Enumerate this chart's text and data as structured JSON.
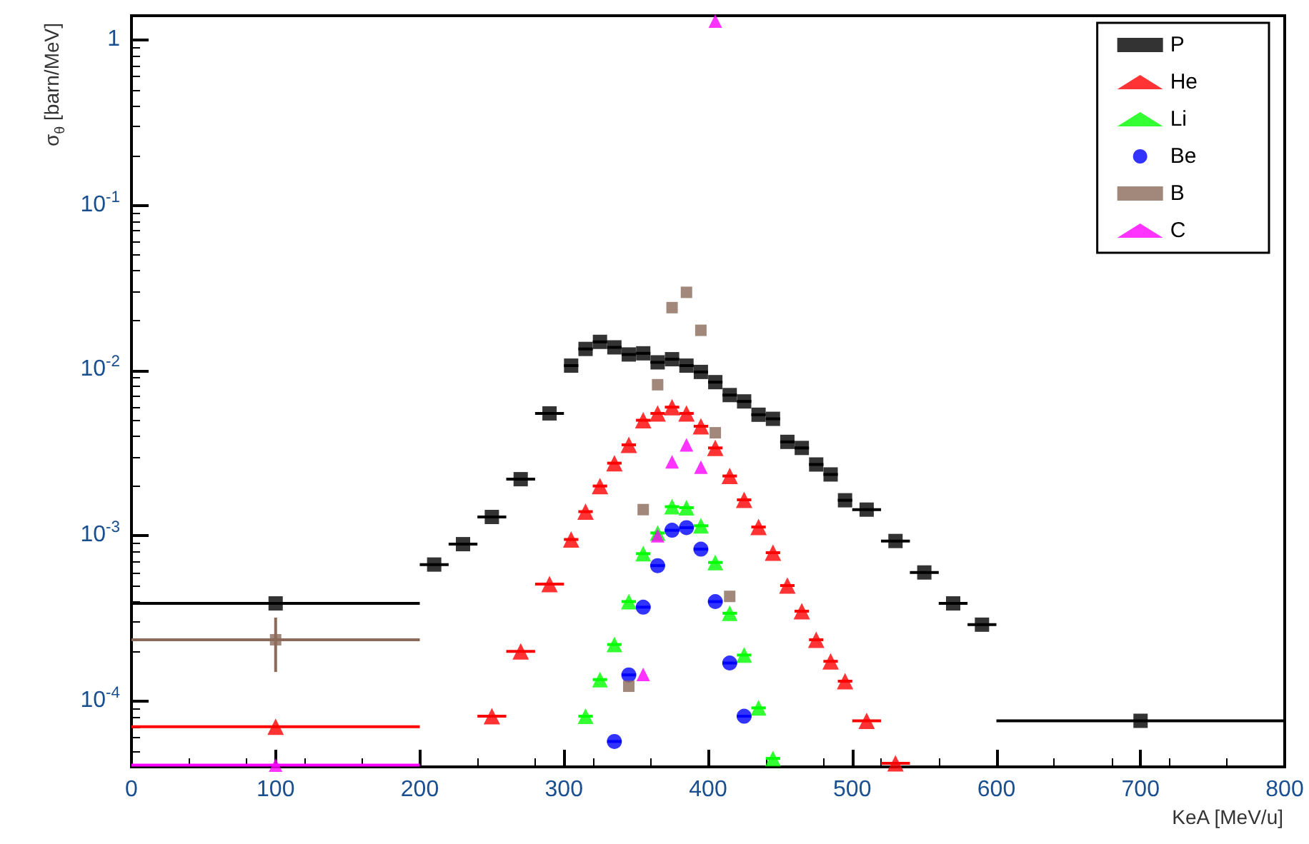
{
  "chart_data": {
    "type": "scatter",
    "xlabel": "KeA [MeV/u]",
    "ylabel": "σ$_{θ}$ [barn/MeV]",
    "log": "y",
    "legend": "top right",
    "xlim": [
      0,
      800
    ],
    "xticks": [
      0,
      100,
      200,
      300,
      400,
      500,
      600,
      700,
      800
    ],
    "ylim": [
      4e-05,
      1.4
    ],
    "yticks": [
      {
        "value": 0.0001,
        "label": "10$^{-4}$"
      },
      {
        "value": 0.001,
        "label": "10$^{-3}$"
      },
      {
        "value": 0.01,
        "label": "10$^{-2}$"
      },
      {
        "value": 0.1,
        "label": "10$^{-1}$"
      },
      1
    ],
    "series": [
      {
        "name": "P",
        "color": "#000000",
        "marker": "square",
        "x": [
          100,
          210,
          230,
          250,
          270,
          290,
          305,
          315,
          325,
          335,
          345,
          355,
          365,
          375,
          385,
          395,
          405,
          415,
          425,
          435,
          445,
          455,
          465,
          475,
          485,
          495,
          510,
          530,
          550,
          570,
          590,
          700
        ],
        "values": [
          0.00039,
          0.00067,
          0.00089,
          0.0013,
          0.0022,
          0.0055,
          0.0107,
          0.0135,
          0.0149,
          0.0138,
          0.0125,
          0.0127,
          0.0112,
          0.0117,
          0.0107,
          0.0098,
          0.0085,
          0.0071,
          0.0065,
          0.0054,
          0.0051,
          0.0037,
          0.0034,
          0.0027,
          0.00235,
          0.00164,
          0.00144,
          0.00093,
          0.0006,
          0.00039,
          0.00029,
          7.6e-05
        ],
        "xerrors": [
          100,
          10,
          10,
          10,
          10,
          10,
          5,
          5,
          5,
          5,
          5,
          5,
          5,
          5,
          5,
          5,
          5,
          5,
          5,
          5,
          5,
          5,
          5,
          5,
          5,
          5,
          10,
          10,
          10,
          10,
          10,
          100
        ]
      },
      {
        "name": "He",
        "color": "#ff0000",
        "marker": "triangle",
        "x": [
          100,
          250,
          270,
          290,
          305,
          315,
          325,
          335,
          345,
          355,
          365,
          375,
          385,
          395,
          405,
          415,
          425,
          435,
          445,
          455,
          465,
          475,
          485,
          495,
          510,
          530
        ],
        "values": [
          7e-05,
          8.1e-05,
          0.0002,
          0.00051,
          0.00095,
          0.0014,
          0.002,
          0.00275,
          0.00355,
          0.005,
          0.0055,
          0.006,
          0.0055,
          0.0046,
          0.0034,
          0.0023,
          0.00165,
          0.00113,
          0.00079,
          0.0005,
          0.00035,
          0.000235,
          0.000174,
          0.000132,
          7.6e-05,
          4.2e-05
        ],
        "xerrors": [
          100,
          10,
          10,
          10,
          5,
          5,
          5,
          5,
          5,
          5,
          5,
          5,
          5,
          5,
          5,
          5,
          5,
          5,
          5,
          5,
          5,
          5,
          5,
          5,
          10,
          10
        ]
      },
      {
        "name": "Li",
        "color": "#00ff00",
        "marker": "triangle",
        "x": [
          315,
          325,
          335,
          345,
          355,
          365,
          375,
          385,
          395,
          405,
          415,
          425,
          435,
          445
        ],
        "values": [
          8.1e-05,
          0.000135,
          0.00022,
          0.0004,
          0.00078,
          0.00104,
          0.0015,
          0.00148,
          0.00115,
          0.00069,
          0.00034,
          0.00019,
          9.1e-05,
          4.5e-05
        ],
        "xerrors": [
          5,
          5,
          5,
          5,
          5,
          5,
          5,
          5,
          5,
          5,
          5,
          5,
          5,
          5
        ]
      },
      {
        "name": "Be",
        "color": "#0000ff",
        "marker": "circle",
        "x": [
          335,
          345,
          355,
          365,
          375,
          385,
          395,
          405,
          415,
          425
        ],
        "values": [
          5.7e-05,
          0.000144,
          0.00037,
          0.00066,
          0.00108,
          0.00112,
          0.00083,
          0.0004,
          0.00017,
          8.1e-05
        ],
        "xerrors": [
          5,
          5,
          5,
          5,
          5,
          5,
          5,
          5,
          5,
          5
        ]
      },
      {
        "name": "B",
        "color": "#8b6a5a",
        "marker": "square",
        "x": [
          100,
          345,
          355,
          365,
          375,
          385,
          395,
          405,
          415
        ],
        "values": [
          0.000235,
          0.000123,
          0.00144,
          0.0082,
          0.024,
          0.0297,
          0.0175,
          0.0042,
          0.00043
        ],
        "xerrors": [
          100,
          null,
          null,
          null,
          null,
          null,
          null,
          null,
          null
        ],
        "errors": [
          [
            0.00015,
            0.00032
          ],
          null,
          null,
          null,
          null,
          null,
          null,
          null,
          null
        ]
      },
      {
        "name": "C",
        "color": "#ff00ff",
        "marker": "triangle",
        "x": [
          100,
          355,
          365,
          375,
          385,
          395,
          405
        ],
        "values": [
          4.1e-05,
          0.000145,
          0.001,
          0.0028,
          0.00355,
          0.0026,
          1.3
        ],
        "xerrors": [
          100,
          null,
          null,
          null,
          null,
          null,
          null
        ]
      }
    ]
  }
}
